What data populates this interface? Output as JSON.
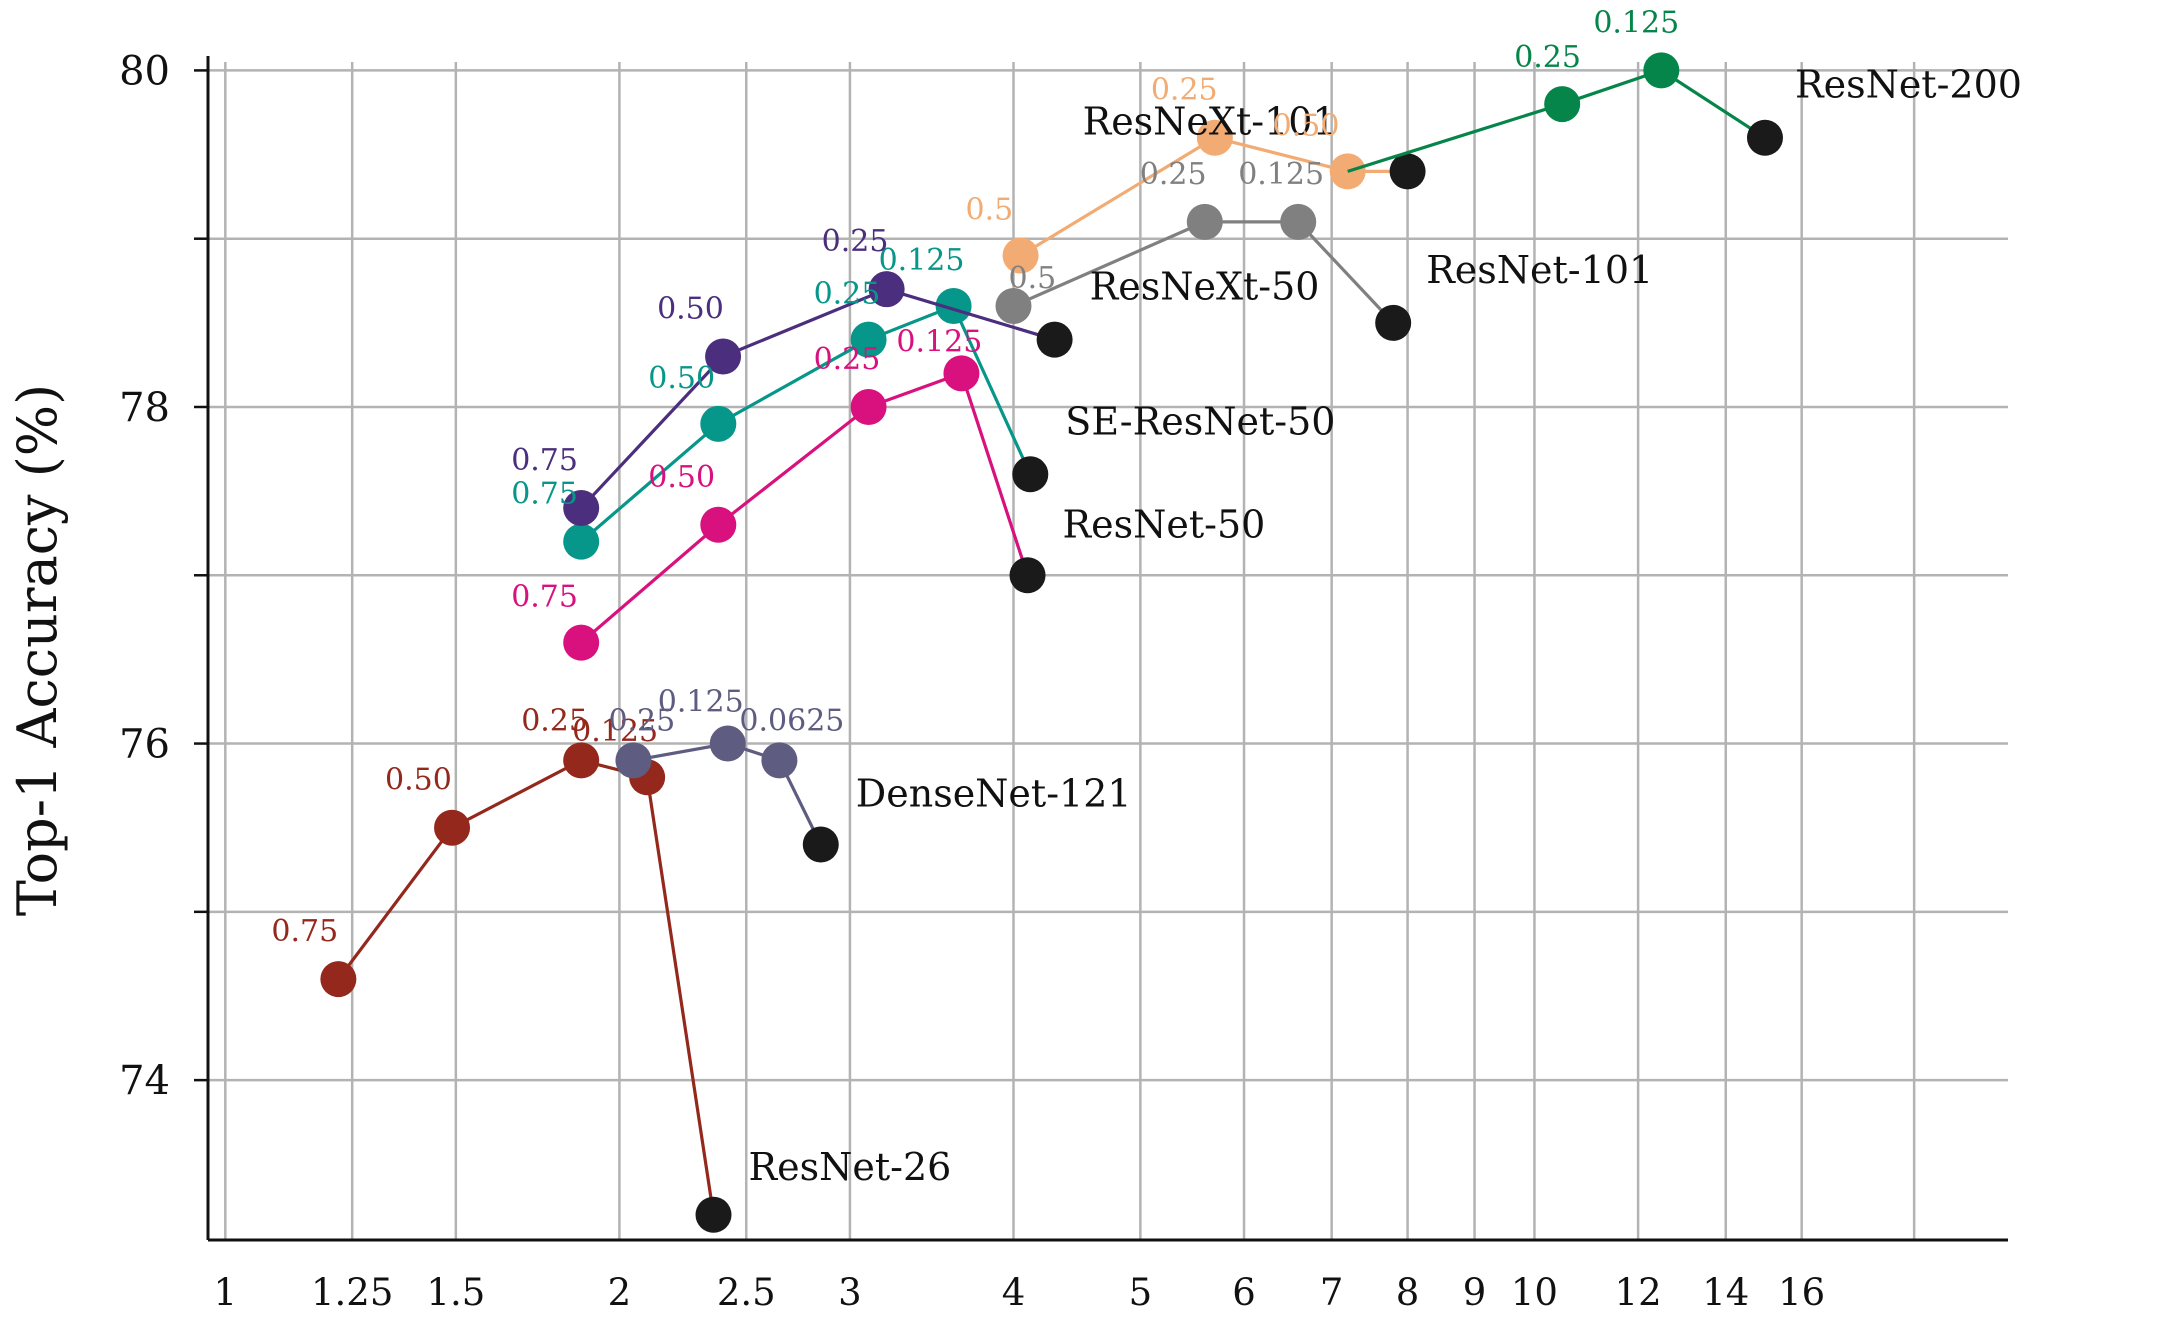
{
  "chart_data": {
    "type": "line",
    "ylabel": "Top-1 Accuracy (%)",
    "xlabel": "",
    "x_scale": "log",
    "xlim": [
      0.97,
      23
    ],
    "ylim": [
      73.05,
      80.05
    ],
    "x_ticks": [
      1,
      1.25,
      1.5,
      2,
      2.5,
      3,
      4,
      5,
      6,
      7,
      8,
      9,
      10,
      12,
      14,
      16
    ],
    "x_tick_labels": [
      "1",
      "1.25",
      "1.5",
      "2",
      "2.5",
      "3",
      "4",
      "5",
      "6",
      "7",
      "8",
      "9",
      "10",
      "12",
      "14",
      "16"
    ],
    "extra_vgrid": [
      19.5
    ],
    "y_ticks": [
      74,
      75,
      76,
      77,
      78,
      79,
      80
    ],
    "y_tick_labels": [
      "74",
      "",
      "76",
      "",
      "78",
      "",
      "80"
    ],
    "grid": true,
    "series": [
      {
        "name": "ResNet-26",
        "color": "#94281c",
        "points": [
          {
            "x": 1.22,
            "y": 74.6,
            "label": "0.75"
          },
          {
            "x": 1.49,
            "y": 75.5,
            "label": "0.50"
          },
          {
            "x": 1.87,
            "y": 75.9,
            "label": "0.25"
          },
          {
            "x": 2.1,
            "y": 75.8,
            "label": "0.125"
          },
          {
            "x": 2.36,
            "y": 73.2,
            "label": ""
          }
        ]
      },
      {
        "name": "DenseNet-121",
        "color": "#5e5c80",
        "points": [
          {
            "x": 2.05,
            "y": 75.9,
            "label": "0.25"
          },
          {
            "x": 2.42,
            "y": 76.0,
            "label": "0.125"
          },
          {
            "x": 2.65,
            "y": 75.9,
            "label": "0.0625"
          },
          {
            "x": 2.85,
            "y": 75.4,
            "label": ""
          }
        ]
      },
      {
        "name": "ResNet-50",
        "color": "#d8117e",
        "points": [
          {
            "x": 1.87,
            "y": 76.6,
            "label": "0.75"
          },
          {
            "x": 2.38,
            "y": 77.3,
            "label": "0.50"
          },
          {
            "x": 3.1,
            "y": 78.0,
            "label": "0.25"
          },
          {
            "x": 3.65,
            "y": 78.2,
            "label": "0.125"
          },
          {
            "x": 4.1,
            "y": 77.0,
            "label": ""
          }
        ]
      },
      {
        "name": "SE-ResNet-50",
        "color": "#07968a",
        "points": [
          {
            "x": 1.87,
            "y": 77.2,
            "label": "0.75"
          },
          {
            "x": 2.38,
            "y": 77.9,
            "label": "0.50"
          },
          {
            "x": 3.1,
            "y": 78.4,
            "label": "0.25"
          },
          {
            "x": 3.6,
            "y": 78.6,
            "label": "0.125"
          },
          {
            "x": 4.12,
            "y": 77.6,
            "label": ""
          }
        ]
      },
      {
        "name": "ResNeXt-50",
        "color": "#4b2e7e",
        "points": [
          {
            "x": 1.87,
            "y": 77.4,
            "label": "0.75"
          },
          {
            "x": 2.4,
            "y": 78.3,
            "label": "0.50"
          },
          {
            "x": 3.2,
            "y": 78.7,
            "label": "0.25"
          },
          {
            "x": 4.3,
            "y": 78.4,
            "label": ""
          }
        ]
      },
      {
        "name": "ResNet-101",
        "color": "#808080",
        "points": [
          {
            "x": 4.0,
            "y": 78.6,
            "label": "0.5"
          },
          {
            "x": 5.6,
            "y": 79.1,
            "label": "0.25"
          },
          {
            "x": 6.6,
            "y": 79.1,
            "label": "0.125"
          },
          {
            "x": 7.8,
            "y": 78.5,
            "label": ""
          }
        ]
      },
      {
        "name": "ResNeXt-101",
        "color": "#f2ab72",
        "points": [
          {
            "x": 4.05,
            "y": 78.9,
            "label": "0.5"
          },
          {
            "x": 5.7,
            "y": 79.6,
            "label": "0.25"
          },
          {
            "x": 7.2,
            "y": 79.4,
            "label": "0.50"
          },
          {
            "x": 8.0,
            "y": 79.4,
            "label": ""
          }
        ]
      },
      {
        "name": "ResNet-200",
        "color": "#06854a",
        "points": [
          {
            "x": 7.2,
            "y": 79.4,
            "label": ""
          },
          {
            "x": 10.5,
            "y": 79.8,
            "label": "0.25"
          },
          {
            "x": 12.5,
            "y": 80.0,
            "label": "0.125"
          },
          {
            "x": 15.0,
            "y": 79.6,
            "label": ""
          }
        ]
      }
    ]
  }
}
